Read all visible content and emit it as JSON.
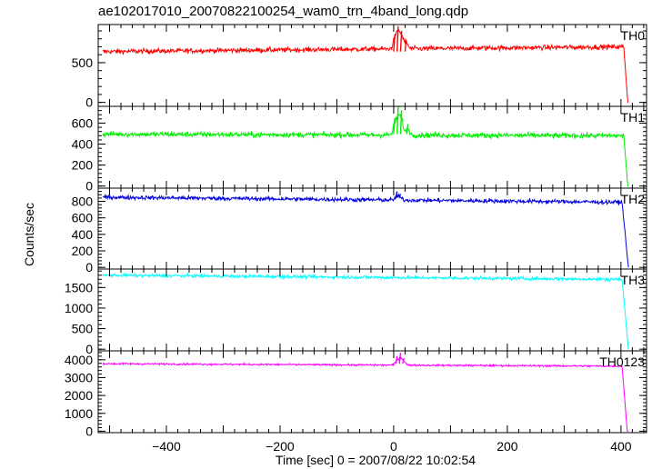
{
  "title": "ae102017010_20070822100254_wam0_trn_4band_long.qdp",
  "chart_data": {
    "type": "line",
    "xlabel": "Time [sec] 0 = 2007/08/22 10:02:54",
    "ylabel": "Counts/sec",
    "xlim": [
      -520,
      445
    ],
    "xticks": [
      -400,
      -200,
      0,
      200,
      400
    ],
    "xtick_labels": [
      "−400",
      "−200",
      "0",
      "200",
      "400"
    ],
    "panels": [
      {
        "name": "TH0",
        "color": "#ff0000",
        "ylim": [
          -50,
          980
        ],
        "yticks": [
          0,
          500
        ],
        "ytick_labels": [
          "0",
          "500"
        ],
        "baseline_start": 640,
        "baseline_end": 700,
        "noise": 55,
        "burst": [
          {
            "t": 2,
            "v": 850
          },
          {
            "t": 8,
            "v": 960
          },
          {
            "t": 14,
            "v": 900
          },
          {
            "t": 22,
            "v": 780
          }
        ],
        "drop_start": 405,
        "drop_end": 412
      },
      {
        "name": "TH1",
        "color": "#00ee00",
        "ylim": [
          -20,
          760
        ],
        "yticks": [
          0,
          200,
          400,
          600
        ],
        "ytick_labels": [
          "0",
          "200",
          "400",
          "600"
        ],
        "baseline_start": 495,
        "baseline_end": 480,
        "noise": 45,
        "burst": [
          {
            "t": 2,
            "v": 650
          },
          {
            "t": 8,
            "v": 760
          },
          {
            "t": 14,
            "v": 720
          },
          {
            "t": 25,
            "v": 590
          }
        ],
        "drop_start": 405,
        "drop_end": 412
      },
      {
        "name": "TH2",
        "color": "#0000dd",
        "ylim": [
          -20,
          960
        ],
        "yticks": [
          0,
          200,
          400,
          600,
          800
        ],
        "ytick_labels": [
          "0",
          "200",
          "400",
          "600",
          "800"
        ],
        "baseline_start": 850,
        "baseline_end": 790,
        "noise": 45,
        "burst": [
          {
            "t": 6,
            "v": 920
          },
          {
            "t": 12,
            "v": 890
          }
        ],
        "drop_start": 402,
        "drop_end": 413
      },
      {
        "name": "TH3",
        "color": "#00ffff",
        "ylim": [
          -40,
          1950
        ],
        "yticks": [
          0,
          500,
          1000,
          1500
        ],
        "ytick_labels": [
          "0",
          "500",
          "1000",
          "1500"
        ],
        "baseline_start": 1800,
        "baseline_end": 1700,
        "noise": 70,
        "burst": [],
        "drop_start": 402,
        "drop_end": 413
      },
      {
        "name": "TH0123",
        "color": "#ff00ff",
        "ylim": [
          -80,
          4500
        ],
        "yticks": [
          0,
          1000,
          2000,
          3000,
          4000
        ],
        "ytick_labels": [
          "0",
          "1000",
          "2000",
          "3000",
          "4000"
        ],
        "baseline_start": 3780,
        "baseline_end": 3640,
        "noise": 90,
        "burst": [
          {
            "t": 6,
            "v": 4200
          },
          {
            "t": 12,
            "v": 4380
          },
          {
            "t": 18,
            "v": 4100
          }
        ],
        "drop_start": 402,
        "drop_end": 411
      }
    ]
  }
}
